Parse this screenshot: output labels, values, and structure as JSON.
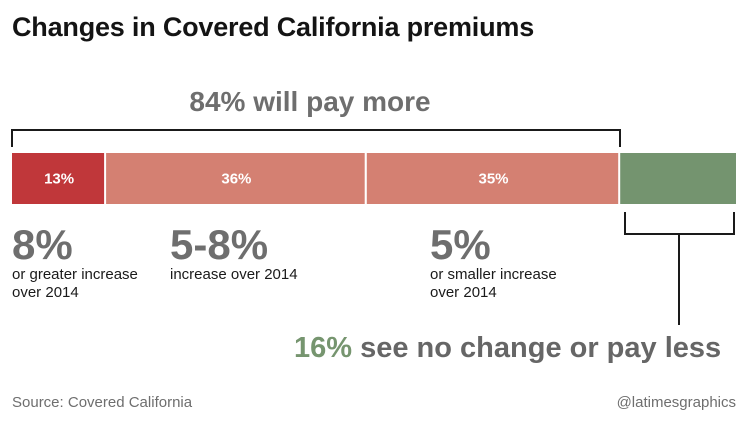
{
  "title": "Changes in Covered California premiums",
  "chart_data": {
    "type": "bar",
    "orientation": "horizontal-stacked",
    "title": "Changes in Covered California premiums",
    "unit": "%",
    "segments": [
      {
        "name": "8% or greater increase over 2014",
        "value": 13,
        "label": "13%",
        "color": "#c0373a"
      },
      {
        "name": "5-8% increase over 2014",
        "value": 36,
        "label": "36%",
        "color": "#d48072"
      },
      {
        "name": "5% or smaller increase over 2014",
        "value": 35,
        "label": "35%",
        "color": "#d48072"
      },
      {
        "name": "see no change or pay less",
        "value": 16,
        "label": "",
        "color": "#74946f"
      }
    ],
    "total": 100,
    "brackets": [
      {
        "label": "84% will pay more",
        "covers": [
          0,
          1,
          2
        ]
      },
      {
        "label": "16% see no change or pay less",
        "covers": [
          3
        ]
      }
    ]
  },
  "annotations": {
    "pay_more": "84% will pay more",
    "categories": [
      {
        "big": "8%",
        "desc": "or greater increase\nover 2014"
      },
      {
        "big": "5-8%",
        "desc": "increase over 2014"
      },
      {
        "big": "5%",
        "desc": "or smaller increase\nover 2014"
      }
    ],
    "pay_less_pct": "16%",
    "pay_less_text": "see no change or pay less"
  },
  "source": "Source: Covered California",
  "credit": "@latimesgraphics"
}
